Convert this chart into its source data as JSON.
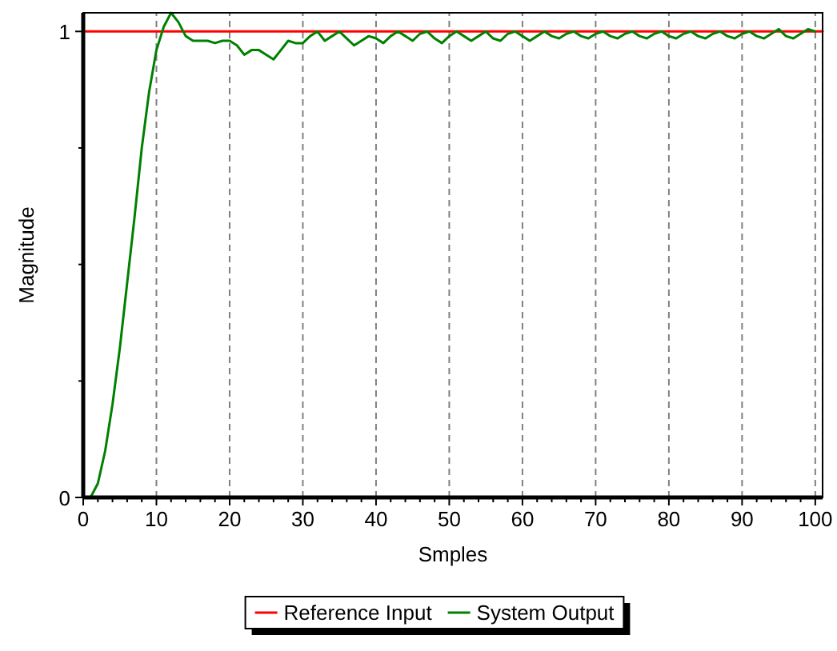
{
  "chart_data": {
    "type": "line",
    "xlabel": "Smples",
    "ylabel": "Magnitude",
    "xlim": [
      0,
      101
    ],
    "ylim": [
      0,
      1.04
    ],
    "xticks": [
      0,
      {
        "value": 2,
        "label": null
      },
      {
        "value": 4,
        "label": null
      },
      {
        "value": 6,
        "label": null
      },
      {
        "value": 8,
        "label": null
      },
      10,
      {
        "value": 12,
        "label": null
      },
      {
        "value": 14,
        "label": null
      },
      {
        "value": 16,
        "label": null
      },
      {
        "value": 18,
        "label": null
      },
      20,
      {
        "value": 22,
        "label": null
      },
      {
        "value": 24,
        "label": null
      },
      {
        "value": 26,
        "label": null
      },
      {
        "value": 28,
        "label": null
      },
      30,
      {
        "value": 32,
        "label": null
      },
      {
        "value": 34,
        "label": null
      },
      {
        "value": 36,
        "label": null
      },
      {
        "value": 38,
        "label": null
      },
      40,
      {
        "value": 42,
        "label": null
      },
      {
        "value": 44,
        "label": null
      },
      {
        "value": 46,
        "label": null
      },
      {
        "value": 48,
        "label": null
      },
      50,
      {
        "value": 52,
        "label": null
      },
      {
        "value": 54,
        "label": null
      },
      {
        "value": 56,
        "label": null
      },
      {
        "value": 58,
        "label": null
      },
      60,
      {
        "value": 62,
        "label": null
      },
      {
        "value": 64,
        "label": null
      },
      {
        "value": 66,
        "label": null
      },
      {
        "value": 68,
        "label": null
      },
      70,
      {
        "value": 72,
        "label": null
      },
      {
        "value": 74,
        "label": null
      },
      {
        "value": 76,
        "label": null
      },
      {
        "value": 78,
        "label": null
      },
      80,
      {
        "value": 82,
        "label": null
      },
      {
        "value": 84,
        "label": null
      },
      {
        "value": 86,
        "label": null
      },
      {
        "value": 88,
        "label": null
      },
      90,
      {
        "value": 92,
        "label": null
      },
      {
        "value": 94,
        "label": null
      },
      {
        "value": 96,
        "label": null
      },
      {
        "value": 98,
        "label": null
      },
      100
    ],
    "yticks": [
      0,
      {
        "value": 0.25,
        "label": null
      },
      {
        "value": 0.5,
        "label": null
      },
      {
        "value": 0.75,
        "label": null
      },
      1
    ],
    "grid": "x",
    "legend": "bottom",
    "line_style": "solid",
    "series": [
      {
        "name": "Reference Input",
        "color": "#ff0000",
        "x": [
          0,
          101
        ],
        "values": [
          1,
          1
        ]
      },
      {
        "name": "System Output",
        "color": "#008000",
        "x": [
          1,
          2,
          3,
          4,
          5,
          6,
          7,
          8,
          9,
          10,
          11,
          12,
          13,
          14,
          15,
          16,
          17,
          18,
          19,
          20,
          21,
          22,
          23,
          24,
          25,
          26,
          27,
          28,
          29,
          30,
          31,
          32,
          33,
          34,
          35,
          36,
          37,
          38,
          39,
          40,
          41,
          42,
          43,
          44,
          45,
          46,
          47,
          48,
          49,
          50,
          51,
          52,
          53,
          54,
          55,
          56,
          57,
          58,
          59,
          60,
          61,
          62,
          63,
          64,
          65,
          66,
          67,
          68,
          69,
          70,
          71,
          72,
          73,
          74,
          75,
          76,
          77,
          78,
          79,
          80,
          81,
          82,
          83,
          84,
          85,
          86,
          87,
          88,
          89,
          90,
          91,
          92,
          93,
          94,
          95,
          96,
          97,
          98,
          99,
          100
        ],
        "values": [
          0,
          0.03,
          0.1,
          0.2,
          0.32,
          0.46,
          0.6,
          0.75,
          0.87,
          0.96,
          1.01,
          1.04,
          1.02,
          0.99,
          0.98,
          0.98,
          0.98,
          0.975,
          0.98,
          0.98,
          0.97,
          0.95,
          0.96,
          0.96,
          0.95,
          0.94,
          0.96,
          0.98,
          0.975,
          0.975,
          0.99,
          1.0,
          0.98,
          0.99,
          1.0,
          0.985,
          0.97,
          0.98,
          0.99,
          0.985,
          0.975,
          0.99,
          1.0,
          0.99,
          0.98,
          0.995,
          1.0,
          0.985,
          0.975,
          0.99,
          1.0,
          0.99,
          0.98,
          0.99,
          1.0,
          0.985,
          0.98,
          0.995,
          1.0,
          0.99,
          0.98,
          0.99,
          1.0,
          0.99,
          0.985,
          0.995,
          1.0,
          0.99,
          0.985,
          0.995,
          1.0,
          0.99,
          0.985,
          0.995,
          1.0,
          0.99,
          0.985,
          0.995,
          1.0,
          0.99,
          0.985,
          0.995,
          1.0,
          0.99,
          0.985,
          0.995,
          1.0,
          0.99,
          0.985,
          0.995,
          1.0,
          0.99,
          0.985,
          0.995,
          1.005,
          0.99,
          0.985,
          0.995,
          1.005,
          1.0
        ]
      }
    ]
  }
}
